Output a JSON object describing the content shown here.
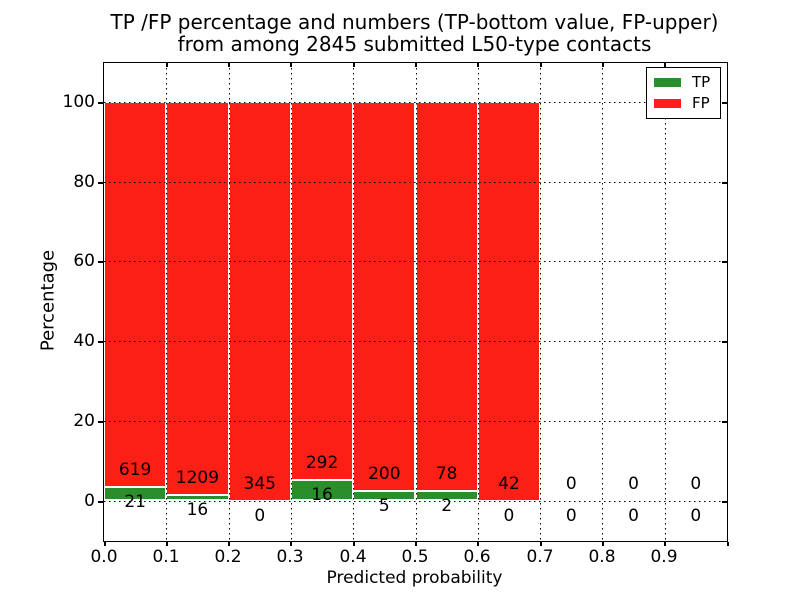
{
  "title": {
    "line1": "TP /FP percentage and numbers (TP-bottom value, FP-upper)",
    "line2": "from among 2845 submitted L50-type contacts"
  },
  "x_axis": {
    "label": "Predicted probability",
    "tick_labels": [
      "0.0",
      "0.1",
      "0.2",
      "0.3",
      "0.4",
      "0.5",
      "0.6",
      "0.7",
      "0.8",
      "0.9"
    ]
  },
  "y_axis": {
    "label": "Percentage",
    "tick_labels": [
      "0",
      "20",
      "40",
      "60",
      "80",
      "100"
    ],
    "tick_values": [
      0,
      20,
      40,
      60,
      80,
      100
    ]
  },
  "legend": {
    "items": [
      {
        "label": "TP",
        "color": "#2a8f2a"
      },
      {
        "label": "FP",
        "color": "#fc1f16"
      }
    ]
  },
  "colors": {
    "tp": "#2a8f2a",
    "fp": "#fc1f16",
    "grid": "#000000",
    "background": "#ffffff",
    "bar_edge": "#ffffff"
  },
  "chart_data": {
    "type": "bar",
    "stacked": true,
    "normalized_to_percent_per_bin": true,
    "title": "TP /FP percentage and numbers (TP-bottom value, FP-upper) from among 2845 submitted L50-type contacts",
    "xlabel": "Predicted probability",
    "ylabel": "Percentage",
    "xlim": [
      0,
      1
    ],
    "ylim_percent": [
      0,
      100
    ],
    "grid": "dotted",
    "legend_position": "upper right",
    "total_submitted": 2845,
    "bin_width": 0.1,
    "categories": [
      "0.0-0.1",
      "0.1-0.2",
      "0.2-0.3",
      "0.3-0.4",
      "0.4-0.5",
      "0.5-0.6",
      "0.6-0.7",
      "0.7-0.8",
      "0.8-0.9",
      "0.9-1.0"
    ],
    "series": [
      {
        "name": "TP",
        "counts": [
          21,
          16,
          0,
          16,
          5,
          2,
          0,
          0,
          0,
          0
        ]
      },
      {
        "name": "FP",
        "counts": [
          619,
          1209,
          345,
          292,
          200,
          78,
          42,
          0,
          0,
          0
        ]
      }
    ]
  }
}
